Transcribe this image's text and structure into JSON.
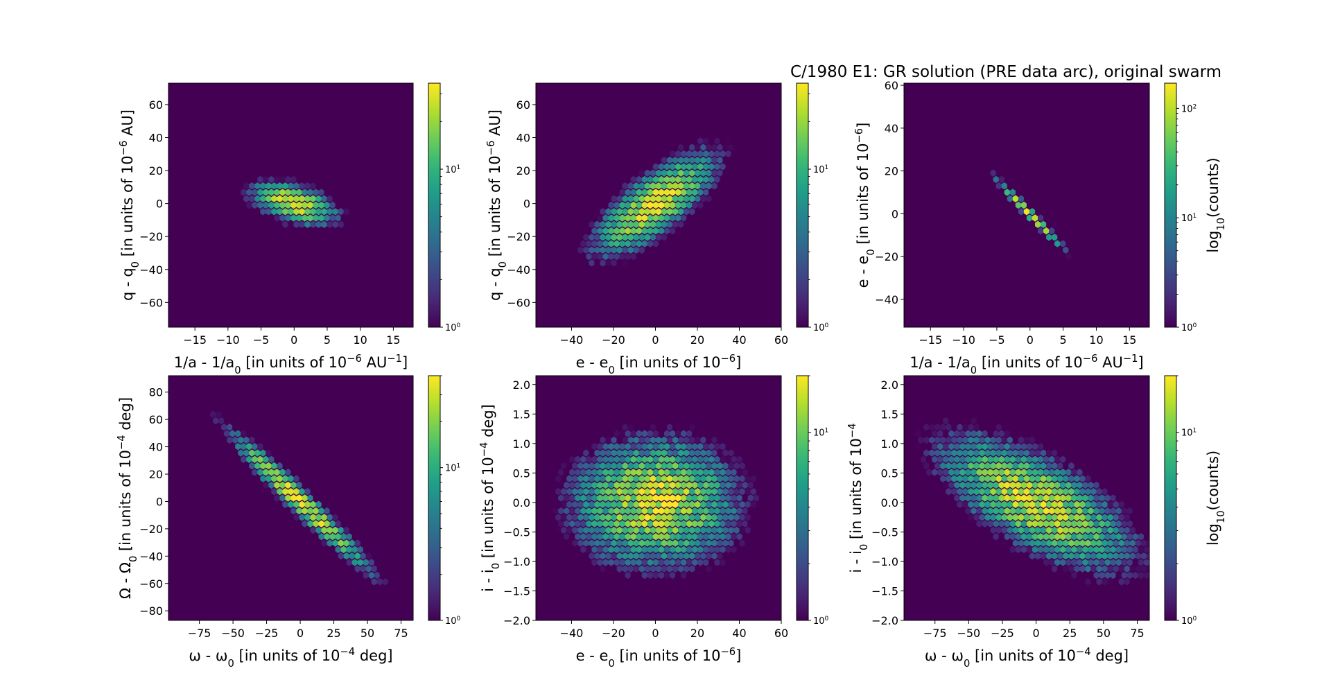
{
  "figure_title": "C/1980 E1: GR solution (PRE data arc), original swarm",
  "colormap": [
    "#440154",
    "#482878",
    "#3e4989",
    "#31688e",
    "#26828e",
    "#1f9e89",
    "#35b779",
    "#6ece58",
    "#b5de2b",
    "#fde725"
  ],
  "chart_data": [
    {
      "type": "heatmap",
      "panel": "top-left",
      "xlabel_parts": [
        [
          "1/a - 1/a",
          ""
        ],
        [
          "0",
          "sub"
        ],
        [
          " [in units of 10",
          ""
        ],
        [
          "−6",
          "sup"
        ],
        [
          " AU",
          ""
        ],
        [
          "−1",
          "sup"
        ],
        [
          "]",
          ""
        ]
      ],
      "ylabel_parts": [
        [
          "q - q",
          ""
        ],
        [
          "0",
          "sub"
        ],
        [
          " [in units of 10",
          ""
        ],
        [
          "−6",
          "sup"
        ],
        [
          " AU]",
          ""
        ]
      ],
      "xlim": [
        -19,
        18
      ],
      "ylim": [
        -75,
        73
      ],
      "xticks": [
        -15,
        -10,
        -5,
        0,
        5,
        10,
        15
      ],
      "xtick_labels": [
        "−15",
        "−10",
        "−5",
        "0",
        "5",
        "10",
        "15"
      ],
      "yticks": [
        -60,
        -40,
        -20,
        0,
        20,
        40,
        60
      ],
      "ytick_labels": [
        "−60",
        "−40",
        "−20",
        "0",
        "20",
        "40",
        "60"
      ],
      "density": {
        "slope": -3.6,
        "sigma_along": 6.5,
        "sigma_perp": 2.6
      },
      "colorbar": {
        "scale": "log",
        "min": 1,
        "max": 35,
        "ticks": [
          {
            "v": 1,
            "base": "10",
            "exp": "0"
          },
          {
            "v": 10,
            "base": "10",
            "exp": "1"
          }
        ],
        "label": ""
      }
    },
    {
      "type": "heatmap",
      "panel": "top-middle",
      "xlabel_parts": [
        [
          "e - e",
          ""
        ],
        [
          "0",
          "sub"
        ],
        [
          " [in units of 10",
          ""
        ],
        [
          "−6",
          "sup"
        ],
        [
          "]",
          ""
        ]
      ],
      "ylabel_parts": [
        [
          "q - q",
          ""
        ],
        [
          "0",
          "sub"
        ],
        [
          " [in units of 10",
          ""
        ],
        [
          "−6",
          "sup"
        ],
        [
          " AU]",
          ""
        ]
      ],
      "xlim": [
        -57,
        60
      ],
      "ylim": [
        -75,
        73
      ],
      "xticks": [
        -40,
        -20,
        0,
        20,
        40,
        60
      ],
      "xtick_labels": [
        "−40",
        "−20",
        "0",
        "20",
        "40",
        "60"
      ],
      "yticks": [
        -60,
        -40,
        -20,
        0,
        20,
        40,
        60
      ],
      "ytick_labels": [
        "−60",
        "−40",
        "−20",
        "0",
        "20",
        "40",
        "60"
      ],
      "density": {
        "slope": 1.12,
        "sigma_along": 19,
        "sigma_perp": 7
      },
      "colorbar": {
        "scale": "log",
        "min": 1,
        "max": 35,
        "ticks": [
          {
            "v": 1,
            "base": "10",
            "exp": "0"
          },
          {
            "v": 10,
            "base": "10",
            "exp": "1"
          }
        ],
        "label": ""
      }
    },
    {
      "type": "heatmap",
      "panel": "top-right",
      "xlabel_parts": [
        [
          "1/a - 1/a",
          ""
        ],
        [
          "0",
          "sub"
        ],
        [
          " [in units of 10",
          ""
        ],
        [
          "−6",
          "sup"
        ],
        [
          " AU",
          ""
        ],
        [
          "−1",
          "sup"
        ],
        [
          "]",
          ""
        ]
      ],
      "ylabel_parts": [
        [
          "e - e",
          ""
        ],
        [
          "0",
          "sub"
        ],
        [
          " [in units of 10",
          ""
        ],
        [
          "−6",
          "sup"
        ],
        [
          "]",
          ""
        ]
      ],
      "xlim": [
        -19,
        18
      ],
      "ylim": [
        -53,
        61
      ],
      "xticks": [
        -15,
        -10,
        -5,
        0,
        5,
        10,
        15
      ],
      "xtick_labels": [
        "−15",
        "−10",
        "−5",
        "0",
        "5",
        "10",
        "15"
      ],
      "yticks": [
        -40,
        -20,
        0,
        20,
        40,
        60
      ],
      "ytick_labels": [
        "−40",
        "−20",
        "0",
        "20",
        "40",
        "60"
      ],
      "density": {
        "slope": -3.25,
        "sigma_along": 6.8,
        "sigma_perp": 0.35
      },
      "colorbar": {
        "scale": "log",
        "min": 1,
        "max": 170,
        "ticks": [
          {
            "v": 1,
            "base": "10",
            "exp": "0"
          },
          {
            "v": 10,
            "base": "10",
            "exp": "1"
          },
          {
            "v": 100,
            "base": "10",
            "exp": "2"
          }
        ],
        "label_parts": [
          [
            "log",
            ""
          ],
          [
            "10",
            "sub"
          ],
          [
            "(counts)",
            ""
          ]
        ]
      }
    },
    {
      "type": "heatmap",
      "panel": "bottom-left",
      "xlabel_parts": [
        [
          "ω - ω",
          ""
        ],
        [
          "0",
          "sub"
        ],
        [
          " [in units of 10",
          ""
        ],
        [
          "−4",
          "sup"
        ],
        [
          " deg]",
          ""
        ]
      ],
      "ylabel_parts": [
        [
          "Ω - Ω",
          ""
        ],
        [
          "0",
          "sub"
        ],
        [
          " [in units of 10",
          ""
        ],
        [
          "−4",
          "sup"
        ],
        [
          " deg]",
          ""
        ]
      ],
      "xlim": [
        -98,
        84
      ],
      "ylim": [
        -87,
        92
      ],
      "xticks": [
        -75,
        -50,
        -25,
        0,
        25,
        50,
        75
      ],
      "xtick_labels": [
        "−75",
        "−50",
        "−25",
        "0",
        "25",
        "50",
        "75"
      ],
      "yticks": [
        -80,
        -60,
        -40,
        -20,
        0,
        20,
        40,
        60,
        80
      ],
      "ytick_labels": [
        "−80",
        "−60",
        "−40",
        "−20",
        "0",
        "20",
        "40",
        "60",
        "80"
      ],
      "density": {
        "slope": -0.98,
        "sigma_along": 34,
        "sigma_perp": 4
      },
      "colorbar": {
        "scale": "log",
        "min": 1,
        "max": 40,
        "ticks": [
          {
            "v": 1,
            "base": "10",
            "exp": "0"
          },
          {
            "v": 10,
            "base": "10",
            "exp": "1"
          }
        ],
        "label": ""
      }
    },
    {
      "type": "heatmap",
      "panel": "bottom-middle",
      "xlabel_parts": [
        [
          "e - e",
          ""
        ],
        [
          "0",
          "sub"
        ],
        [
          " [in units of 10",
          ""
        ],
        [
          "−6",
          "sup"
        ],
        [
          "]",
          ""
        ]
      ],
      "ylabel_parts": [
        [
          "i - i",
          ""
        ],
        [
          "0",
          "sub"
        ],
        [
          " [in units of 10",
          ""
        ],
        [
          "−4",
          "sup"
        ],
        [
          " deg]",
          ""
        ]
      ],
      "xlim": [
        -57,
        60
      ],
      "ylim": [
        -2.0,
        2.15
      ],
      "xticks": [
        -40,
        -20,
        0,
        20,
        40,
        60
      ],
      "xtick_labels": [
        "−40",
        "−20",
        "0",
        "20",
        "40",
        "60"
      ],
      "yticks": [
        -2.0,
        -1.5,
        -1.0,
        -0.5,
        0.0,
        0.5,
        1.0,
        1.5,
        2.0
      ],
      "ytick_labels": [
        "−2.0",
        "−1.5",
        "−1.0",
        "−0.5",
        "0.0",
        "0.5",
        "1.0",
        "1.5",
        "2.0"
      ],
      "density": {
        "slope": 0,
        "sigma_x": 20,
        "sigma_y": 0.55
      },
      "colorbar": {
        "scale": "log",
        "min": 1,
        "max": 20,
        "ticks": [
          {
            "v": 1,
            "base": "10",
            "exp": "0"
          },
          {
            "v": 10,
            "base": "10",
            "exp": "1"
          }
        ],
        "label": ""
      }
    },
    {
      "type": "heatmap",
      "panel": "bottom-right",
      "xlabel_parts": [
        [
          "ω - ω",
          ""
        ],
        [
          "0",
          "sub"
        ],
        [
          " [in units of 10",
          ""
        ],
        [
          "−4",
          "sup"
        ],
        [
          " deg]",
          ""
        ]
      ],
      "ylabel_parts": [
        [
          "i - i",
          ""
        ],
        [
          "0",
          "sub"
        ],
        [
          " [in units of 10",
          ""
        ],
        [
          "−4",
          "sup"
        ]
      ],
      "xlim": [
        -98,
        84
      ],
      "ylim": [
        -2.0,
        2.15
      ],
      "xticks": [
        -75,
        -50,
        -25,
        0,
        25,
        50,
        75
      ],
      "xtick_labels": [
        "−75",
        "−50",
        "−25",
        "0",
        "25",
        "50",
        "75"
      ],
      "yticks": [
        -2.0,
        -1.5,
        -1.0,
        -0.5,
        0.0,
        0.5,
        1.0,
        1.5,
        2.0
      ],
      "ytick_labels": [
        "−2.0",
        "−1.5",
        "−1.0",
        "−0.5",
        "0.0",
        "0.5",
        "1.0",
        "1.5",
        "2.0"
      ],
      "density": {
        "slope": -0.011,
        "sigma_along": 36,
        "sigma_perp": 0.42
      },
      "colorbar": {
        "scale": "log",
        "min": 1,
        "max": 20,
        "ticks": [
          {
            "v": 1,
            "base": "10",
            "exp": "0"
          },
          {
            "v": 10,
            "base": "10",
            "exp": "1"
          }
        ],
        "label_parts": [
          [
            "log",
            ""
          ],
          [
            "10",
            "sub"
          ],
          [
            "(counts)",
            ""
          ]
        ]
      }
    }
  ]
}
